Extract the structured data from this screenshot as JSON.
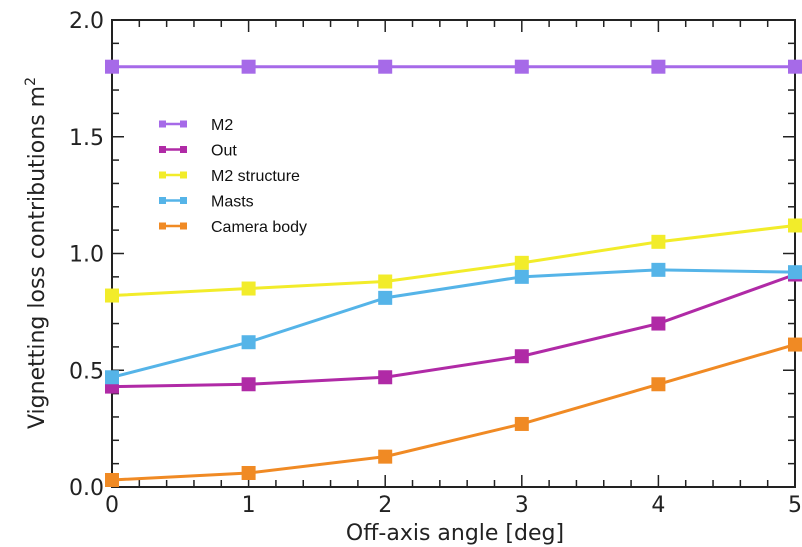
{
  "chart_data": {
    "type": "line",
    "title": "",
    "xlabel": "Off-axis angle [deg]",
    "ylabel": "Vignetting loss contributions m",
    "ylabel_superscript": "2",
    "xlim": [
      0,
      5
    ],
    "ylim": [
      0,
      2.0
    ],
    "x_ticks": [
      "0",
      "1",
      "2",
      "3",
      "4",
      "5"
    ],
    "y_ticks": [
      "0.0",
      "0.5",
      "1.0",
      "1.5",
      "2.0"
    ],
    "x": [
      0,
      1,
      2,
      3,
      4,
      5
    ],
    "grid": false,
    "legend_position": "upper-left",
    "series": [
      {
        "name": "M2",
        "color": "#a66ae8",
        "values": [
          1.8,
          1.8,
          1.8,
          1.8,
          1.8,
          1.8
        ]
      },
      {
        "name": "Out",
        "color": "#b02aa6",
        "values": [
          0.43,
          0.44,
          0.47,
          0.56,
          0.7,
          0.91
        ]
      },
      {
        "name": "M2 structure",
        "color": "#f2ec2a",
        "values": [
          0.82,
          0.85,
          0.88,
          0.96,
          1.05,
          1.12
        ]
      },
      {
        "name": "Masts",
        "color": "#55b4e8",
        "values": [
          0.47,
          0.62,
          0.81,
          0.9,
          0.93,
          0.92
        ]
      },
      {
        "name": "Camera body",
        "color": "#f08a24",
        "values": [
          0.03,
          0.06,
          0.13,
          0.27,
          0.44,
          0.61
        ]
      }
    ]
  }
}
